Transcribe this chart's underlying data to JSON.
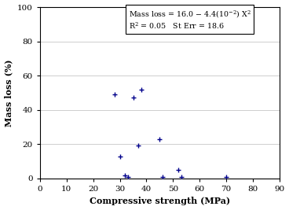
{
  "title": "",
  "xlabel": "Compressive strength (MPa)",
  "ylabel": "Mass loss (%)",
  "xlim": [
    0,
    90
  ],
  "ylim": [
    0,
    100
  ],
  "xticks": [
    0,
    10,
    20,
    30,
    40,
    50,
    60,
    70,
    80,
    90
  ],
  "yticks": [
    0,
    20,
    40,
    60,
    80,
    100
  ],
  "scatter_x": [
    28,
    30,
    32,
    33,
    35,
    37,
    38,
    45,
    46,
    52,
    53,
    70
  ],
  "scatter_y": [
    49,
    13,
    2,
    1,
    47,
    19,
    52,
    23,
    1,
    5,
    1,
    1
  ],
  "scatter_color": "#00008B",
  "curve_color": "#8B1A1A",
  "curve_a": 16.0,
  "curve_b": 0.044,
  "curve_x_start": 19.0,
  "background_color": "#ffffff"
}
